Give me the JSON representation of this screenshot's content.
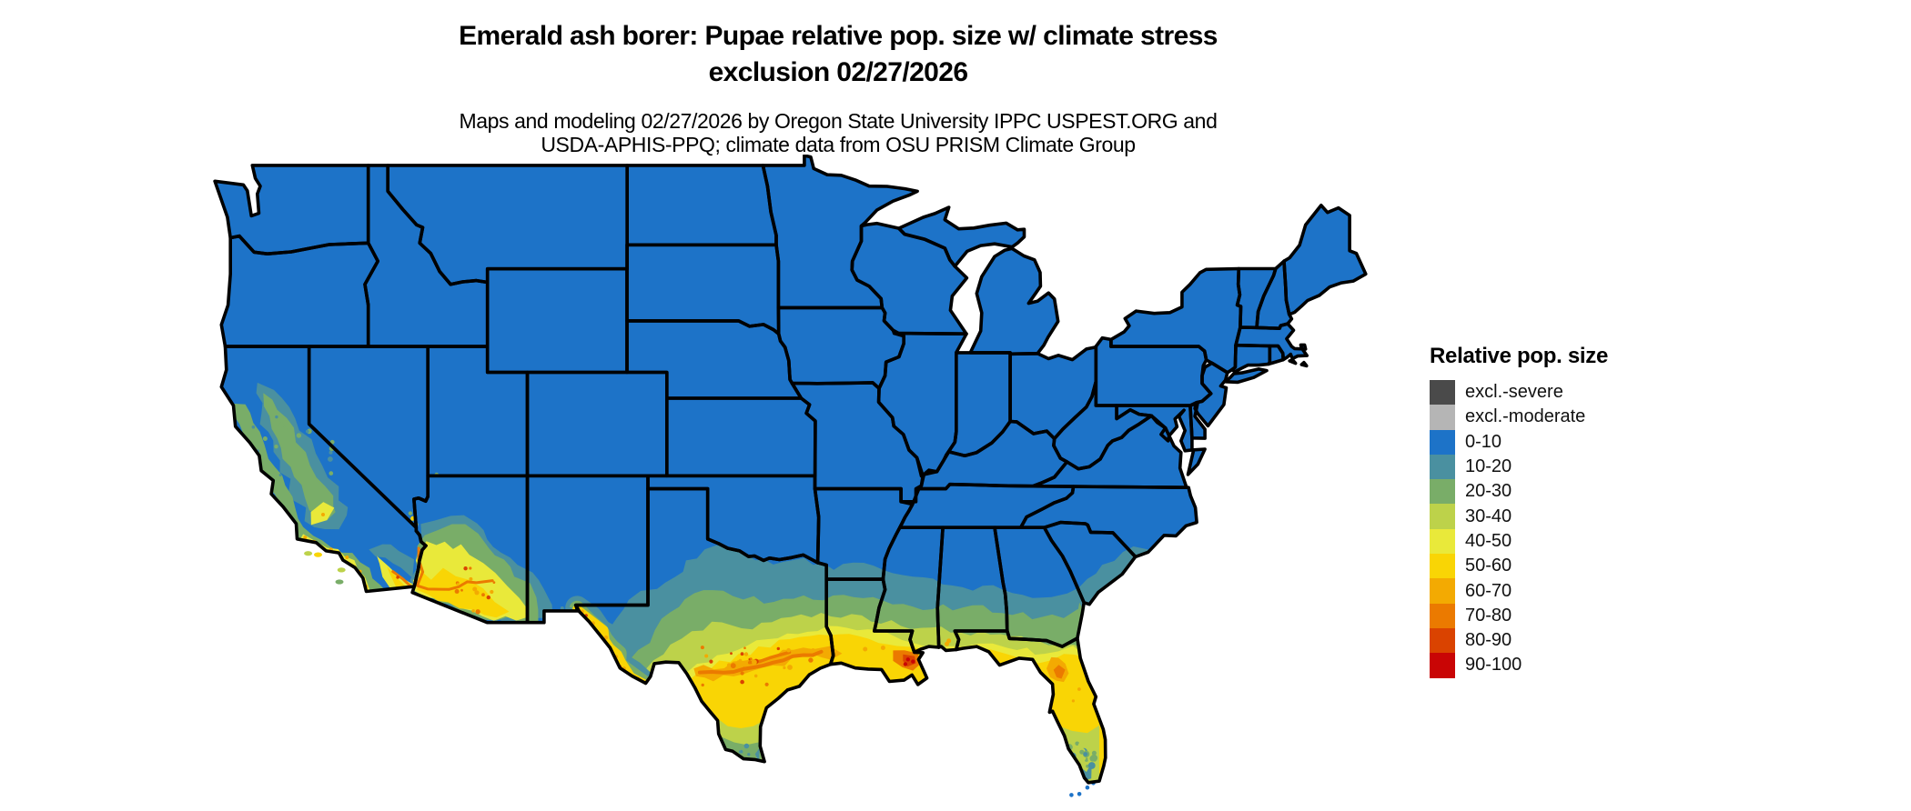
{
  "title": {
    "line1": "Emerald ash borer: Pupae relative pop. size w/ climate stress",
    "line2": "exclusion 02/27/2026"
  },
  "subtitle": {
    "line1": "Maps and modeling 02/27/2026 by Oregon State University IPPC USPEST.ORG and",
    "line2": "USDA-APHIS-PPQ; climate data from OSU PRISM Climate Group"
  },
  "legend": {
    "title": "Relative pop. size",
    "items": [
      {
        "label": "excl.-severe",
        "color": "#4a4a4a"
      },
      {
        "label": "excl.-moderate",
        "color": "#b5b5b5"
      },
      {
        "label": "0-10",
        "color": "#1d73c8"
      },
      {
        "label": "10-20",
        "color": "#4a90a0"
      },
      {
        "label": "20-30",
        "color": "#79ad68"
      },
      {
        "label": "30-40",
        "color": "#bdd24a"
      },
      {
        "label": "40-50",
        "color": "#e9e93a"
      },
      {
        "label": "50-60",
        "color": "#f9d505"
      },
      {
        "label": "60-70",
        "color": "#f3aa02"
      },
      {
        "label": "70-80",
        "color": "#eb7a00"
      },
      {
        "label": "80-90",
        "color": "#da4300"
      },
      {
        "label": "90-100",
        "color": "#c90505"
      }
    ]
  },
  "map_data": {
    "type": "choropleth",
    "region": "Continental United States with state boundaries",
    "units": "relative population size class (0-100) with climate stress exclusion",
    "date_shown": "02/27/2026",
    "dominant_class": "0-10",
    "border_color": "#000000",
    "water_background": "#ffffff",
    "elevated_areas": [
      {
        "area": "south and central Texas",
        "classes": "10-20 through 80-90, orange band inland of Gulf coast"
      },
      {
        "area": "Rio Grande / El Paso-Big Bend strip",
        "classes": "20-60 with 60-90 flecks"
      },
      {
        "area": "Louisiana and Gulf Coast",
        "classes": "50-60 with 70-90 blob near Mississippi delta"
      },
      {
        "area": "southern Arkansas through Georgia coastal plain",
        "classes": "10-40 latitude bands"
      },
      {
        "area": "Florida peninsula",
        "classes": "50-60 with 60-80 patch in north-central Florida, 10-40 at southern tip"
      },
      {
        "area": "southern Arizona / southwest New Mexico",
        "classes": "10-60 with 60-90 flecks"
      },
      {
        "area": "southern California coast, Central Valley, Imperial Valley",
        "classes": "10-60 with 60-80 flecks"
      },
      {
        "area": "South Carolina and Georgia coast",
        "classes": "10-30 strip"
      }
    ]
  }
}
